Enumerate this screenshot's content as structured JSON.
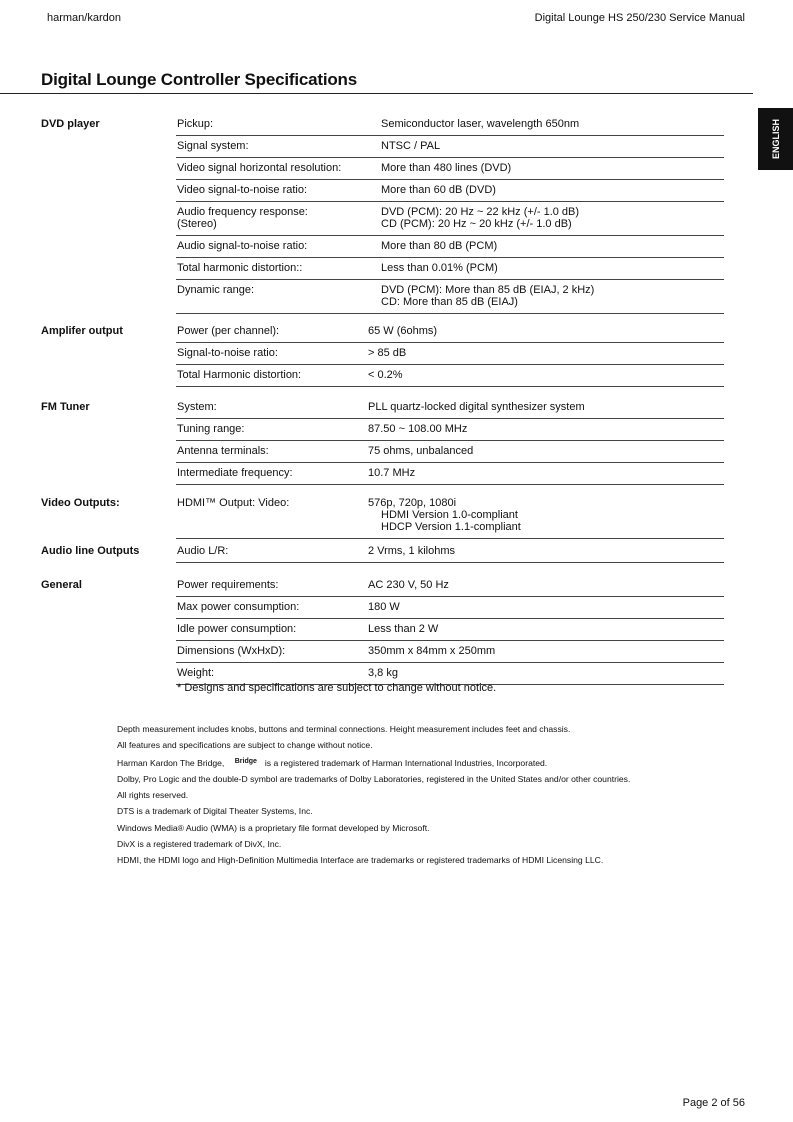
{
  "header": {
    "brand": "harman/kardon",
    "manual": "Digital Lounge HS 250/230 Service Manual"
  },
  "title": "Digital Lounge Controller Specifications",
  "language_tab": "ENGLISH",
  "sections": [
    {
      "name": "DVD player",
      "rows": [
        {
          "label": [
            "Pickup:"
          ],
          "value": [
            "Semiconductor laser, wavelength 650nm"
          ]
        },
        {
          "label": [
            "Signal system:"
          ],
          "value": [
            "NTSC / PAL"
          ]
        },
        {
          "label": [
            "Video signal horizontal resolution:"
          ],
          "value": [
            "More than 480 lines (DVD)"
          ]
        },
        {
          "label": [
            "Video signal-to-noise ratio:"
          ],
          "value": [
            "More than 60 dB (DVD)"
          ]
        },
        {
          "label": [
            "Audio frequency response:",
            "(Stereo)"
          ],
          "value": [
            "DVD (PCM): 20 Hz ~ 22 kHz (+/- 1.0 dB)",
            "CD (PCM): 20 Hz ~ 20 kHz (+/- 1.0 dB)"
          ]
        },
        {
          "label": [
            "Audio signal-to-noise ratio:"
          ],
          "value": [
            "More than 80 dB (PCM)"
          ]
        },
        {
          "label": [
            "Total harmonic distortion::"
          ],
          "value": [
            "Less than 0.01% (PCM)"
          ]
        },
        {
          "label": [
            "Dynamic range:"
          ],
          "value": [
            "DVD (PCM): More than 85 dB (EIAJ, 2 kHz)",
            "CD: More than 85 dB (EIAJ)"
          ]
        }
      ]
    },
    {
      "name": "Amplifer output",
      "rows": [
        {
          "label": [
            "Power (per channel):"
          ],
          "value": [
            "65 W (6ohms)"
          ]
        },
        {
          "label": [
            "Signal-to-noise ratio:"
          ],
          "value": [
            "> 85 dB"
          ]
        },
        {
          "label": [
            "Total Harmonic distortion:"
          ],
          "value": [
            "< 0.2%"
          ]
        }
      ]
    },
    {
      "name": "FM Tuner",
      "rows": [
        {
          "label": [
            "System:"
          ],
          "value": [
            "PLL quartz-locked digital synthesizer system"
          ]
        },
        {
          "label": [
            "Tuning range:"
          ],
          "value": [
            "87.50 ~ 108.00 MHz"
          ]
        },
        {
          "label": [
            "Antenna terminals:"
          ],
          "value": [
            "75 ohms, unbalanced"
          ]
        },
        {
          "label": [
            "Intermediate frequency:"
          ],
          "value": [
            "10.7 MHz"
          ]
        }
      ]
    },
    {
      "name": "Video Outputs:",
      "rows": [
        {
          "label": [
            "HDMI™ Output: Video:"
          ],
          "value": [
            "576p, 720p, 1080i",
            "HDMI Version 1.0-compliant",
            "HDCP Version 1.1-compliant"
          ]
        }
      ]
    },
    {
      "name": "Audio line Outputs",
      "rows": [
        {
          "label": [
            "Audio L/R:"
          ],
          "value": [
            "2 Vrms, 1 kilohms"
          ]
        }
      ]
    },
    {
      "name": "General",
      "rows": [
        {
          "label": [
            "Power requirements:"
          ],
          "value": [
            "AC 230 V, 50 Hz"
          ]
        },
        {
          "label": [
            "Max power consumption:"
          ],
          "value": [
            "180 W"
          ]
        },
        {
          "label": [
            "Idle power consumption:"
          ],
          "value": [
            "Less than 2 W"
          ]
        },
        {
          "label": [
            "Dimensions (WxHxD):"
          ],
          "value": [
            "350mm x 84mm x 250mm"
          ]
        },
        {
          "label": [
            "Weight:"
          ],
          "value": [
            "3,8 kg"
          ]
        }
      ]
    }
  ],
  "note": "* Designs and specifications are subject to change without notice.",
  "fine_print": [
    "Depth measurement includes knobs, buttons and terminal connections. Height measurement includes feet and chassis.",
    "All features and specifications are subject to change without notice.",
    "Harman Kardon The Bridge, ",
    "Dolby, Pro Logic and the double-D symbol are trademarks of Dolby Laboratories, registered in the United States and/or other countries.",
    "All rights reserved.",
    "DTS is a trademark of Digital Theater Systems, Inc.",
    "Windows Media® Audio (WMA) is a proprietary file format developed by Microsoft.",
    "DivX is a registered trademark of DivX, Inc.",
    "HDMI, the HDMI logo and High-Definition Multimedia Interface are trademarks or registered trademarks of HDMI Licensing LLC."
  ],
  "bridge_logo": "Bridge",
  "bridge_suffix": "is a registered trademark of Harman International Industries, Incorporated.",
  "page_number": "Page 2 of 56"
}
